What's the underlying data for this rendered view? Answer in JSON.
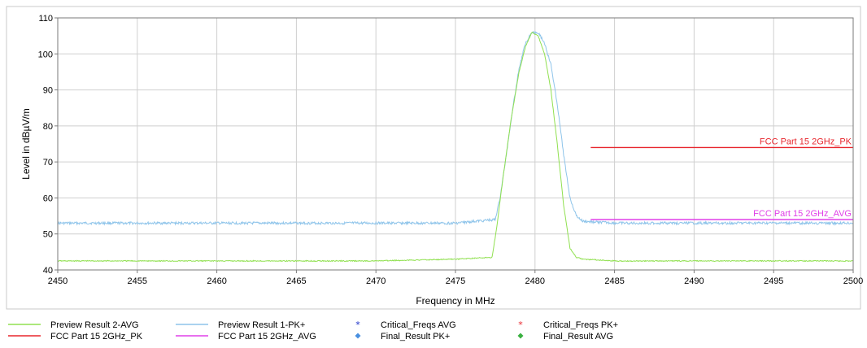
{
  "chart_data": {
    "type": "line",
    "title": "",
    "xlabel": "Frequency in MHz",
    "ylabel": "Level in dBµV/m",
    "xlim": [
      2450,
      2500
    ],
    "ylim": [
      40,
      110
    ],
    "x_ticks": [
      2450,
      2455,
      2460,
      2465,
      2470,
      2475,
      2480,
      2485,
      2490,
      2495,
      2500
    ],
    "y_ticks": [
      40,
      50,
      60,
      70,
      80,
      90,
      100,
      110
    ],
    "grid": true,
    "legend_position": "bottom",
    "series": [
      {
        "name": "Preview Result 1-PK+",
        "color": "#8ec4ea",
        "x": [
          2450,
          2455,
          2460,
          2465,
          2470,
          2475,
          2477.5,
          2477.8,
          2478.2,
          2478.6,
          2479,
          2479.4,
          2479.8,
          2480.2,
          2480.6,
          2481,
          2481.4,
          2481.8,
          2482.2,
          2482.6,
          2483,
          2485,
          2490,
          2495,
          2500
        ],
        "y": [
          53,
          53,
          53,
          53,
          53,
          53,
          54,
          60,
          72,
          85,
          96,
          103,
          106,
          106,
          103,
          97,
          86,
          72,
          60,
          55,
          53.5,
          53,
          53,
          53,
          53
        ]
      },
      {
        "name": "Preview Result 2-AVG",
        "color": "#90e050",
        "x": [
          2450,
          2455,
          2460,
          2465,
          2470,
          2475,
          2477.3,
          2477.6,
          2478,
          2478.5,
          2479,
          2479.4,
          2479.8,
          2480.2,
          2480.6,
          2481,
          2481.4,
          2481.8,
          2482.2,
          2482.6,
          2483,
          2485,
          2490,
          2495,
          2500
        ],
        "y": [
          42.5,
          42.5,
          42.5,
          42.5,
          42.5,
          43,
          43.5,
          52,
          66,
          82,
          95,
          102,
          106,
          105,
          100,
          90,
          75,
          58,
          46,
          43.5,
          43,
          42.5,
          42.5,
          42.5,
          42.5
        ]
      },
      {
        "name": "FCC Part 15 2GHz_PK",
        "color": "#e8262d",
        "x": [
          2483.5,
          2500
        ],
        "y": [
          74,
          74
        ]
      },
      {
        "name": "FCC Part 15 2GHz_AVG",
        "color": "#e040e8",
        "x": [
          2483.5,
          2500
        ],
        "y": [
          54,
          54
        ]
      }
    ],
    "limit_labels": [
      {
        "text": "FCC Part 15 2GHz_PK",
        "color": "#e8262d",
        "y": 74
      },
      {
        "text": "FCC Part 15 2GHz_AVG",
        "color": "#e040e8",
        "y": 54
      }
    ],
    "legend": [
      {
        "label": "Preview Result 2-AVG",
        "marker": "line",
        "color": "#90e050"
      },
      {
        "label": "Preview Result 1-PK+",
        "marker": "line",
        "color": "#8ec4ea"
      },
      {
        "label": "Critical_Freqs AVG",
        "marker": "star",
        "color": "#1a2fc8"
      },
      {
        "label": "Critical_Freqs PK+",
        "marker": "star",
        "color": "#e8262d"
      },
      {
        "label": "FCC Part 15 2GHz_PK",
        "marker": "line",
        "color": "#e8262d"
      },
      {
        "label": "FCC Part 15 2GHz_AVG",
        "marker": "line",
        "color": "#e040e8"
      },
      {
        "label": "Final_Result PK+",
        "marker": "diamond",
        "color": "#4a90e0"
      },
      {
        "label": "Final_Result AVG",
        "marker": "diamond",
        "color": "#3ab040"
      }
    ]
  }
}
